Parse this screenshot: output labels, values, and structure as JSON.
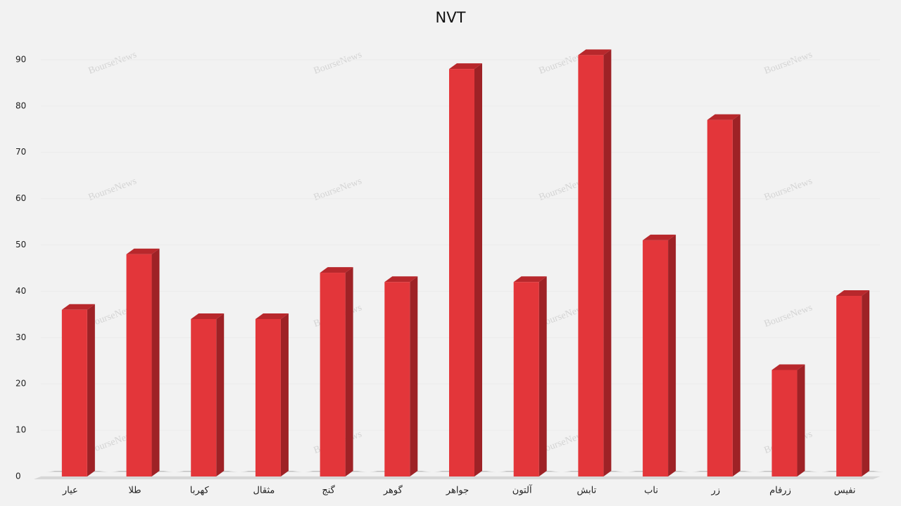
{
  "chart_data": {
    "type": "bar3d",
    "title": "NVT",
    "categories": [
      "عیار",
      "طلا",
      "کهربا",
      "مثقال",
      "گنج",
      "گوهر",
      "جواهر",
      "آلتون",
      "تابش",
      "ناب",
      "زر",
      "زرفام",
      "نفیس"
    ],
    "values": [
      36,
      48,
      34,
      34,
      44,
      42,
      88,
      42,
      91,
      51,
      77,
      23,
      39
    ],
    "color": "#e3363a",
    "ylim": [
      0,
      95
    ],
    "yticks": [
      0,
      10,
      20,
      30,
      40,
      50,
      60,
      70,
      80,
      90
    ],
    "grid": true,
    "watermark": "BourseNews"
  }
}
